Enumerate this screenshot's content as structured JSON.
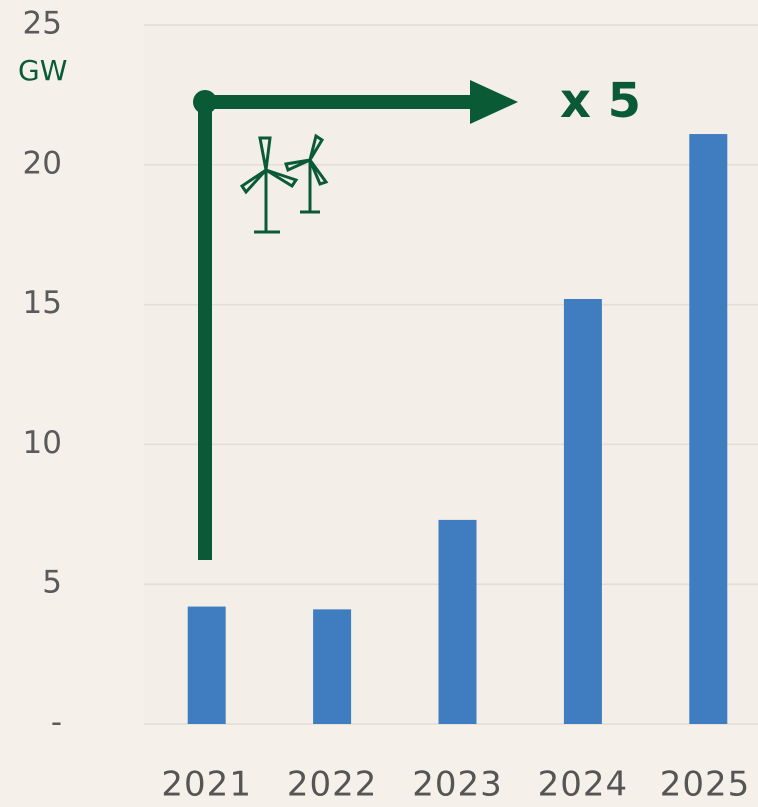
{
  "chart_data": {
    "type": "bar",
    "unit_label": "GW",
    "annotation": "x 5",
    "categories": [
      "2021",
      "2022",
      "2023",
      "2024",
      "2025"
    ],
    "values": [
      4.2,
      4.1,
      7.3,
      15.2,
      21.1
    ],
    "color": "#3f7cc0",
    "ylim": [
      0,
      25
    ],
    "yticks": [
      {
        "value": 0,
        "label": "-"
      },
      5,
      10,
      15,
      20,
      25
    ],
    "grid": true
  }
}
